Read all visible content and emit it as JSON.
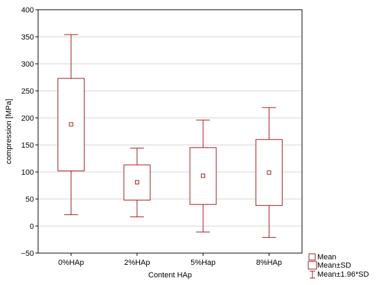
{
  "chart_data": {
    "type": "box",
    "title": "",
    "xlabel": "Content HAp",
    "ylabel": "compression [MPa]",
    "ylim": [
      -50,
      400
    ],
    "yticks": [
      400,
      350,
      300,
      250,
      200,
      150,
      100,
      50,
      0,
      -50
    ],
    "ytick_labels": [
      "400",
      "350",
      "300",
      "250",
      "200",
      "150",
      "100",
      "50",
      "0",
      "−50"
    ],
    "grid": true,
    "legend_position": "bottom-right",
    "color": "#a01c1c",
    "categories": [
      "0%HAp",
      "2%HAp",
      "5%Hap",
      "8%HAp"
    ],
    "series": [
      {
        "category": "0%HAp",
        "mean": 188,
        "sd_low": 102,
        "sd_high": 273,
        "ci_low": 21,
        "ci_high": 354
      },
      {
        "category": "2%HAp",
        "mean": 81,
        "sd_low": 48,
        "sd_high": 113,
        "ci_low": 17,
        "ci_high": 144
      },
      {
        "category": "5%Hap",
        "mean": 93,
        "sd_low": 40,
        "sd_high": 145,
        "ci_low": -11,
        "ci_high": 196
      },
      {
        "category": "8%HAp",
        "mean": 99,
        "sd_low": 38,
        "sd_high": 160,
        "ci_low": -21,
        "ci_high": 219
      }
    ],
    "legend": [
      {
        "symbol": "small-square",
        "label": "Mean"
      },
      {
        "symbol": "box",
        "label": "Mean±SD"
      },
      {
        "symbol": "whisker",
        "label": "Mean±1.96*SD"
      }
    ]
  }
}
